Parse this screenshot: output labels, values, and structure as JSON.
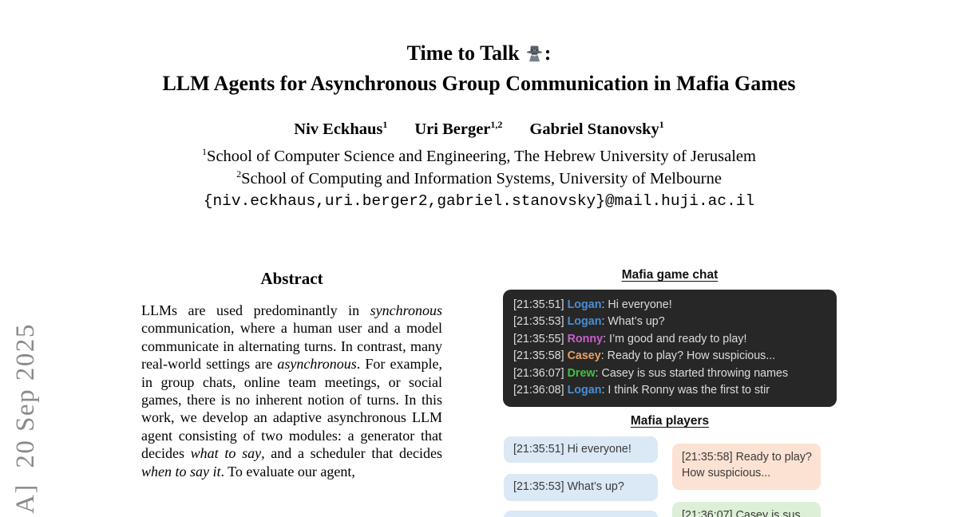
{
  "watermark": {
    "text": "A]  20 Sep 2025"
  },
  "title": {
    "line1_text": "Time to Talk",
    "line1_colon": ":",
    "emoji_name": "detective-emoji",
    "line2": "LLM Agents for Asynchronous Group Communication in Mafia Games"
  },
  "authors": [
    {
      "name": "Niv Eckhaus",
      "sup": "1"
    },
    {
      "name": "Uri Berger",
      "sup": "1,2"
    },
    {
      "name": "Gabriel Stanovsky",
      "sup": "1"
    }
  ],
  "affiliations": [
    {
      "sup": "1",
      "text": "School of Computer Science and Engineering, The Hebrew University of Jerusalem"
    },
    {
      "sup": "2",
      "text": "School of Computing and Information Systems, University of Melbourne"
    }
  ],
  "email": "{niv.eckhaus,uri.berger2,gabriel.stanovsky}@mail.huji.ac.il",
  "abstract": {
    "heading": "Abstract",
    "segments": [
      {
        "t": "LLMs are used predominantly in "
      },
      {
        "t": "synchronous",
        "i": true
      },
      {
        "t": " communication, where a human user and a model communicate in alternating turns. In contrast, many real-world settings are "
      },
      {
        "t": "asynchronous",
        "i": true
      },
      {
        "t": ". For example, in group chats, online team meetings, or social games, there is no inherent notion of turns. In this work, we develop an adaptive asynchronous LLM agent consisting of two modules: a generator that decides "
      },
      {
        "t": "what to say",
        "i": true
      },
      {
        "t": ", and a scheduler that decides "
      },
      {
        "t": "when to say it",
        "i": true
      },
      {
        "t": ". To evaluate our agent,"
      }
    ]
  },
  "figure": {
    "chat_header": "Mafia game chat",
    "players_header": "Mafia players",
    "chat_bg": "#272727",
    "player_colors": {
      "Logan": "#4a8ed5",
      "Ronny": "#c95fce",
      "Casey": "#e9a163",
      "Drew": "#3fc43f"
    },
    "chat_messages": [
      {
        "time": "[21:35:51]",
        "name": "Logan",
        "text": "Hi everyone!"
      },
      {
        "time": "[21:35:53]",
        "name": "Logan",
        "text": "What’s up?"
      },
      {
        "time": "[21:35:55]",
        "name": "Ronny",
        "text": "I’m good and ready to play!"
      },
      {
        "time": "[21:35:58]",
        "name": "Casey",
        "text": "Ready to play? How suspicious..."
      },
      {
        "time": "[21:36:07]",
        "name": "Drew",
        "text": "Casey is sus started throwing names"
      },
      {
        "time": "[21:36:08]",
        "name": "Logan",
        "text": "I think Ronny was the first to stir"
      }
    ],
    "bubble_colors": {
      "blue": "#dbe8f5",
      "orange": "#fbe2d2",
      "green": "#ddefd7"
    },
    "bubbles_left": [
      {
        "text": "[21:35:51] Hi everyone!",
        "color": "blue"
      },
      {
        "text": "[21:35:53] What’s up?",
        "color": "blue"
      },
      {
        "text": "",
        "color": "blue"
      }
    ],
    "bubbles_right": [
      {
        "text": "[21:35:58] Ready to play? How suspicious...",
        "color": "orange"
      },
      {
        "text": "[21:36:07] Casey is sus",
        "color": "green"
      }
    ]
  }
}
